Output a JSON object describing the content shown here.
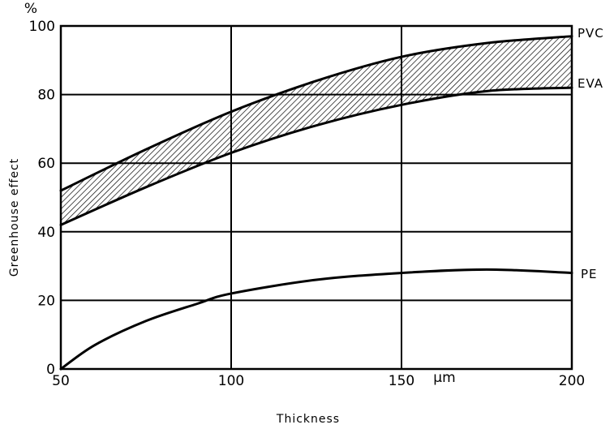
{
  "chart_data": {
    "type": "line",
    "title": "",
    "xlabel": "Thickness",
    "ylabel": "Greenhouse effect",
    "y_unit_label": "%",
    "x_unit_label": "μm",
    "xlim": [
      50,
      200
    ],
    "ylim": [
      0,
      100
    ],
    "x_ticks": [
      "50",
      "100",
      "150",
      "200"
    ],
    "y_ticks": [
      "0",
      "20",
      "40",
      "60",
      "80",
      "100"
    ],
    "grid": true,
    "legend": "labels at right end of curves",
    "shaded_band": {
      "between": [
        "PVC",
        "EVA"
      ],
      "pattern": "diagonal hatch"
    },
    "series": [
      {
        "name": "PVC",
        "x": [
          50,
          75,
          100,
          125,
          150,
          175,
          200
        ],
        "values": [
          52,
          64,
          75,
          84,
          91,
          95,
          97
        ]
      },
      {
        "name": "EVA",
        "x": [
          50,
          75,
          100,
          125,
          150,
          175,
          200
        ],
        "values": [
          42,
          53,
          63,
          71,
          77,
          81,
          82
        ]
      },
      {
        "name": "PE",
        "x": [
          50,
          60,
          75,
          90,
          100,
          125,
          150,
          175,
          200
        ],
        "values": [
          0,
          7,
          14,
          19,
          22,
          26,
          28,
          29,
          28
        ]
      }
    ],
    "colors": {
      "line": "#000000",
      "grid": "#000000",
      "background": "#ffffff"
    }
  }
}
